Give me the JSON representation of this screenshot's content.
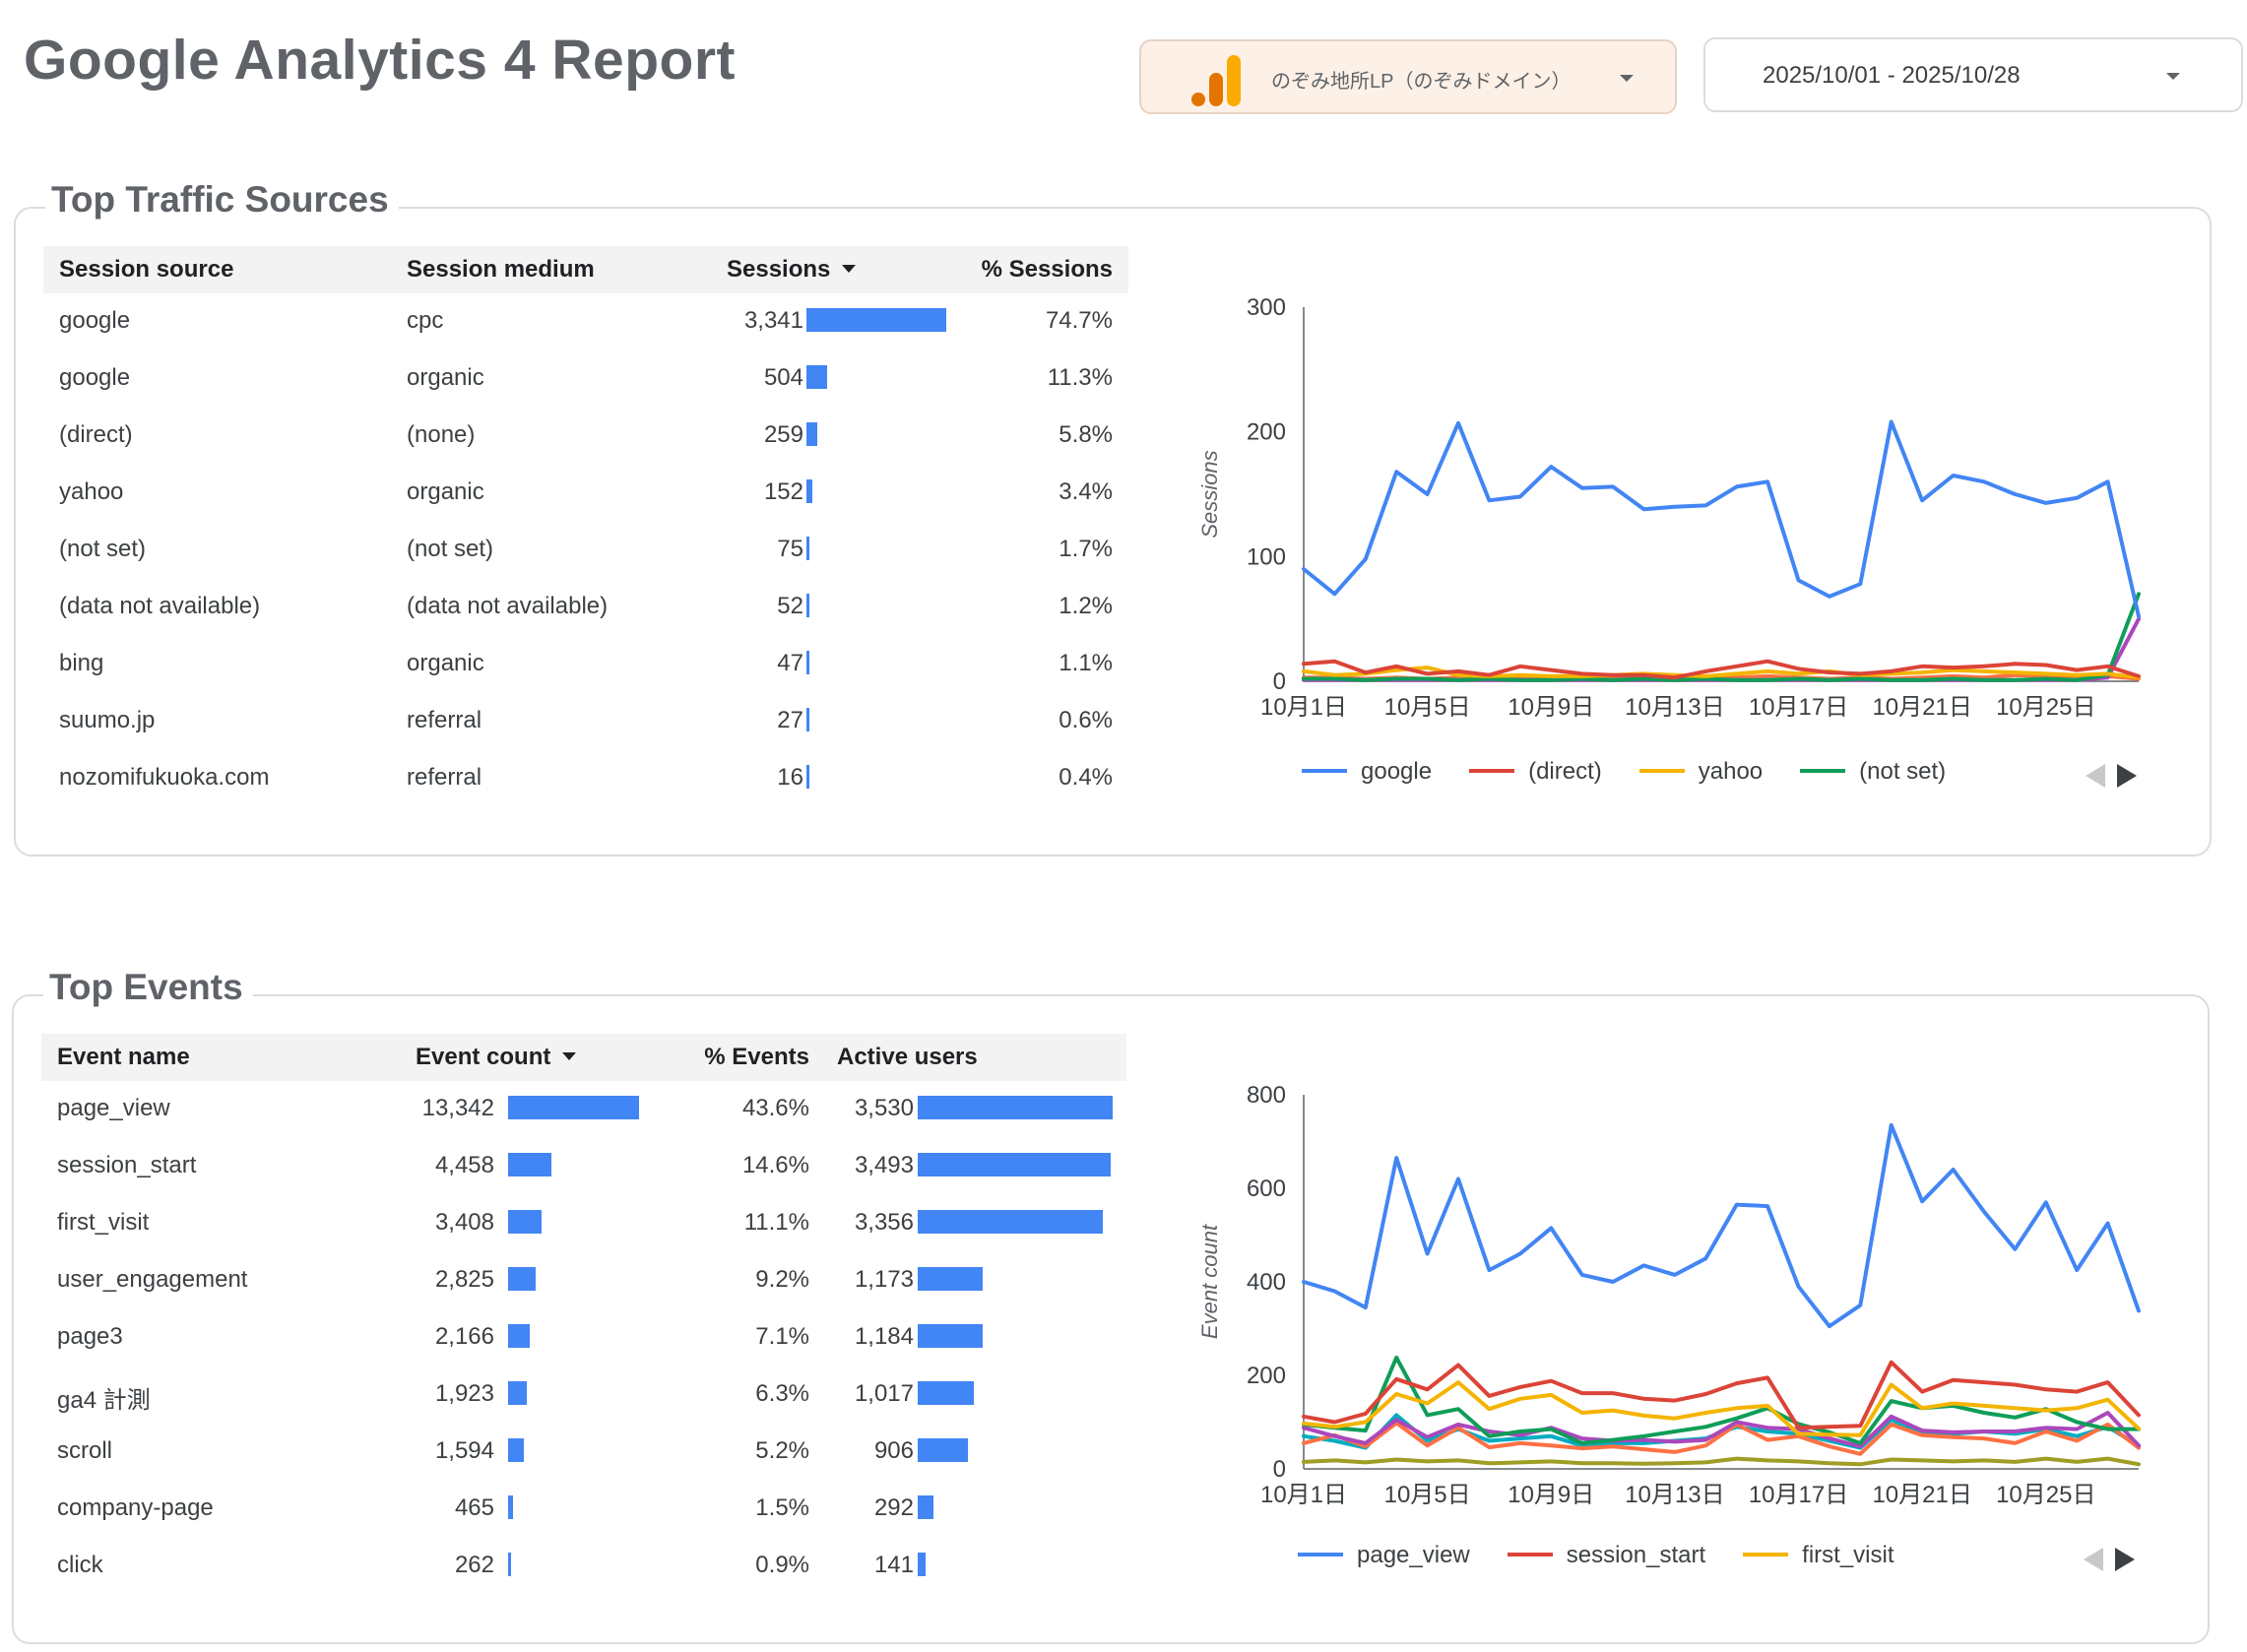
{
  "header": {
    "title": "Google Analytics 4 Report",
    "property_label": "のぞみ地所LP（のぞみドメイン）",
    "date_range": "2025/10/01 - 2025/10/28"
  },
  "colors": {
    "accent_blue": "#4285f4",
    "red": "#db4437",
    "yellow": "#f4b400",
    "green": "#0f9d58",
    "purple": "#ab47bc",
    "orange": "#ff7043",
    "olive": "#9e9d24"
  },
  "traffic": {
    "title": "Top Traffic Sources",
    "columns": [
      "Session source",
      "Session medium",
      "Sessions",
      "% Sessions"
    ],
    "rows": [
      {
        "source": "google",
        "medium": "cpc",
        "sessions": "3,341",
        "share": 1.0,
        "pct": "74.7%"
      },
      {
        "source": "google",
        "medium": "organic",
        "sessions": "504",
        "share": 0.151,
        "pct": "11.3%"
      },
      {
        "source": "(direct)",
        "medium": "(none)",
        "sessions": "259",
        "share": 0.078,
        "pct": "5.8%"
      },
      {
        "source": "yahoo",
        "medium": "organic",
        "sessions": "152",
        "share": 0.045,
        "pct": "3.4%"
      },
      {
        "source": "(not set)",
        "medium": "(not set)",
        "sessions": "75",
        "share": 0.022,
        "pct": "1.7%"
      },
      {
        "source": "(data not available)",
        "medium": "(data not available)",
        "sessions": "52",
        "share": 0.016,
        "pct": "1.2%"
      },
      {
        "source": "bing",
        "medium": "organic",
        "sessions": "47",
        "share": 0.014,
        "pct": "1.1%"
      },
      {
        "source": "suumo.jp",
        "medium": "referral",
        "sessions": "27",
        "share": 0.008,
        "pct": "0.6%"
      },
      {
        "source": "nozomifukuoka.com",
        "medium": "referral",
        "sessions": "16",
        "share": 0.005,
        "pct": "0.4%"
      }
    ]
  },
  "events": {
    "title": "Top Events",
    "columns": [
      "Event name",
      "Event count",
      "% Events",
      "Active users"
    ],
    "rows": [
      {
        "name": "page_view",
        "count": "13,342",
        "count_share": 1.0,
        "pct": "43.6%",
        "users": "3,530",
        "users_share": 1.0
      },
      {
        "name": "session_start",
        "count": "4,458",
        "count_share": 0.334,
        "pct": "14.6%",
        "users": "3,493",
        "users_share": 0.99
      },
      {
        "name": "first_visit",
        "count": "3,408",
        "count_share": 0.255,
        "pct": "11.1%",
        "users": "3,356",
        "users_share": 0.951
      },
      {
        "name": "user_engagement",
        "count": "2,825",
        "count_share": 0.212,
        "pct": "9.2%",
        "users": "1,173",
        "users_share": 0.332
      },
      {
        "name": "page3",
        "count": "2,166",
        "count_share": 0.162,
        "pct": "7.1%",
        "users": "1,184",
        "users_share": 0.335
      },
      {
        "name": "ga4 計測",
        "count": "1,923",
        "count_share": 0.144,
        "pct": "6.3%",
        "users": "1,017",
        "users_share": 0.288
      },
      {
        "name": "scroll",
        "count": "1,594",
        "count_share": 0.119,
        "pct": "5.2%",
        "users": "906",
        "users_share": 0.257
      },
      {
        "name": "company-page",
        "count": "465",
        "count_share": 0.035,
        "pct": "1.5%",
        "users": "292",
        "users_share": 0.083
      },
      {
        "name": "click",
        "count": "262",
        "count_share": 0.02,
        "pct": "0.9%",
        "users": "141",
        "users_share": 0.04
      }
    ]
  },
  "chart_data": [
    {
      "type": "line",
      "ylabel": "Sessions",
      "ylim": [
        0,
        300
      ],
      "yticks": [
        0,
        100,
        200,
        300
      ],
      "x": [
        "10月1日",
        "10月2日",
        "10月3日",
        "10月4日",
        "10月5日",
        "10月6日",
        "10月7日",
        "10月8日",
        "10月9日",
        "10月10日",
        "10月11日",
        "10月12日",
        "10月13日",
        "10月14日",
        "10月15日",
        "10月16日",
        "10月17日",
        "10月18日",
        "10月19日",
        "10月20日",
        "10月21日",
        "10月22日",
        "10月23日",
        "10月24日",
        "10月25日",
        "10月26日",
        "10月27日",
        "10月28日"
      ],
      "xticks": [
        "10月1日",
        "10月5日",
        "10月9日",
        "10月13日",
        "10月17日",
        "10月21日",
        "10月25日"
      ],
      "legend": [
        "google",
        "(direct)",
        "yahoo",
        "(not set)"
      ],
      "series": [
        {
          "name": "google",
          "color": "#4285f4",
          "values": [
            90,
            70,
            98,
            168,
            150,
            207,
            145,
            148,
            172,
            155,
            156,
            138,
            140,
            141,
            156,
            160,
            81,
            68,
            78,
            208,
            145,
            165,
            160,
            150,
            143,
            147,
            160,
            52
          ]
        },
        {
          "name": "(direct)",
          "color": "#db4437",
          "values": [
            14,
            16,
            7,
            12,
            6,
            8,
            5,
            12,
            9,
            6,
            5,
            5,
            3,
            8,
            12,
            16,
            10,
            7,
            6,
            8,
            12,
            11,
            12,
            14,
            13,
            9,
            12,
            4
          ]
        },
        {
          "name": "yahoo",
          "color": "#f4b400",
          "values": [
            8,
            5,
            6,
            9,
            11,
            5,
            4,
            5,
            4,
            4,
            5,
            6,
            5,
            4,
            6,
            8,
            6,
            8,
            5,
            6,
            7,
            9,
            8,
            7,
            6,
            5,
            6,
            3
          ]
        },
        {
          "name": "(not set)",
          "color": "#0f9d58",
          "values": [
            2,
            2,
            1,
            2,
            2,
            1,
            2,
            1,
            1,
            2,
            1,
            2,
            1,
            2,
            1,
            1,
            2,
            1,
            2,
            1,
            1,
            2,
            1,
            1,
            2,
            1,
            5,
            70
          ]
        },
        {
          "name": "",
          "color": "#ab47bc",
          "values": [
            1,
            1,
            1,
            1,
            1,
            1,
            1,
            1,
            1,
            1,
            1,
            1,
            1,
            1,
            1,
            1,
            1,
            1,
            1,
            1,
            1,
            1,
            1,
            1,
            1,
            1,
            3,
            50
          ]
        },
        {
          "name": "",
          "color": "#ff7043",
          "values": [
            3,
            3,
            2,
            3,
            2,
            3,
            2,
            3,
            2,
            2,
            3,
            2,
            3,
            2,
            3,
            4,
            3,
            2,
            3,
            2,
            3,
            4,
            3,
            5,
            4,
            3,
            4,
            2
          ]
        }
      ]
    },
    {
      "type": "line",
      "ylabel": "Event count",
      "ylim": [
        0,
        800
      ],
      "yticks": [
        0,
        200,
        400,
        600,
        800
      ],
      "x": [
        "10月1日",
        "10月2日",
        "10月3日",
        "10月4日",
        "10月5日",
        "10月6日",
        "10月7日",
        "10月8日",
        "10月9日",
        "10月10日",
        "10月11日",
        "10月12日",
        "10月13日",
        "10月14日",
        "10月15日",
        "10月16日",
        "10月17日",
        "10月18日",
        "10月19日",
        "10月20日",
        "10月21日",
        "10月22日",
        "10月23日",
        "10月24日",
        "10月25日",
        "10月26日",
        "10月27日",
        "10月28日"
      ],
      "xticks": [
        "10月1日",
        "10月5日",
        "10月9日",
        "10月13日",
        "10月17日",
        "10月21日",
        "10月25日"
      ],
      "legend": [
        "page_view",
        "session_start",
        "first_visit"
      ],
      "series": [
        {
          "name": "page_view",
          "color": "#4285f4",
          "values": [
            400,
            380,
            345,
            665,
            460,
            620,
            425,
            460,
            515,
            415,
            400,
            435,
            415,
            450,
            565,
            562,
            390,
            305,
            350,
            735,
            572,
            640,
            550,
            470,
            570,
            425,
            525,
            338
          ]
        },
        {
          "name": "session_start",
          "color": "#db4437",
          "values": [
            112,
            100,
            118,
            192,
            170,
            222,
            156,
            175,
            188,
            162,
            162,
            150,
            146,
            160,
            183,
            195,
            88,
            90,
            92,
            228,
            165,
            190,
            185,
            180,
            170,
            165,
            185,
            115
          ]
        },
        {
          "name": "first_visit",
          "color": "#f4b400",
          "values": [
            97,
            90,
            100,
            160,
            140,
            185,
            128,
            150,
            158,
            120,
            125,
            114,
            108,
            120,
            130,
            135,
            75,
            73,
            72,
            180,
            130,
            140,
            135,
            130,
            125,
            130,
            148,
            86
          ]
        },
        {
          "name": "user_engagement",
          "color": "#0f9d58",
          "values": [
            95,
            88,
            82,
            238,
            115,
            128,
            70,
            80,
            85,
            55,
            62,
            70,
            80,
            90,
            108,
            130,
            96,
            78,
            55,
            145,
            130,
            135,
            120,
            110,
            128,
            100,
            85,
            85
          ]
        },
        {
          "name": "page3",
          "color": "#ab47bc",
          "values": [
            88,
            70,
            55,
            105,
            68,
            95,
            80,
            72,
            88,
            65,
            60,
            62,
            58,
            62,
            100,
            88,
            85,
            65,
            48,
            112,
            82,
            78,
            80,
            80,
            88,
            85,
            120,
            50
          ]
        },
        {
          "name": "ga4 計測",
          "color": "#ff7043",
          "values": [
            55,
            72,
            48,
            98,
            50,
            88,
            46,
            55,
            50,
            44,
            48,
            42,
            36,
            50,
            95,
            62,
            70,
            48,
            32,
            95,
            72,
            68,
            65,
            55,
            80,
            60,
            95,
            45
          ]
        },
        {
          "name": "scroll",
          "color": "#00acc1",
          "values": [
            70,
            60,
            45,
            115,
            60,
            85,
            60,
            65,
            70,
            50,
            55,
            55,
            60,
            65,
            90,
            80,
            75,
            60,
            45,
            105,
            75,
            75,
            80,
            75,
            85,
            70,
            90,
            50
          ]
        },
        {
          "name": "company-page",
          "color": "#9e9d24",
          "values": [
            15,
            18,
            14,
            20,
            16,
            18,
            12,
            14,
            16,
            12,
            12,
            11,
            12,
            14,
            22,
            18,
            16,
            12,
            10,
            20,
            18,
            16,
            18,
            15,
            22,
            15,
            22,
            10
          ]
        }
      ]
    }
  ]
}
